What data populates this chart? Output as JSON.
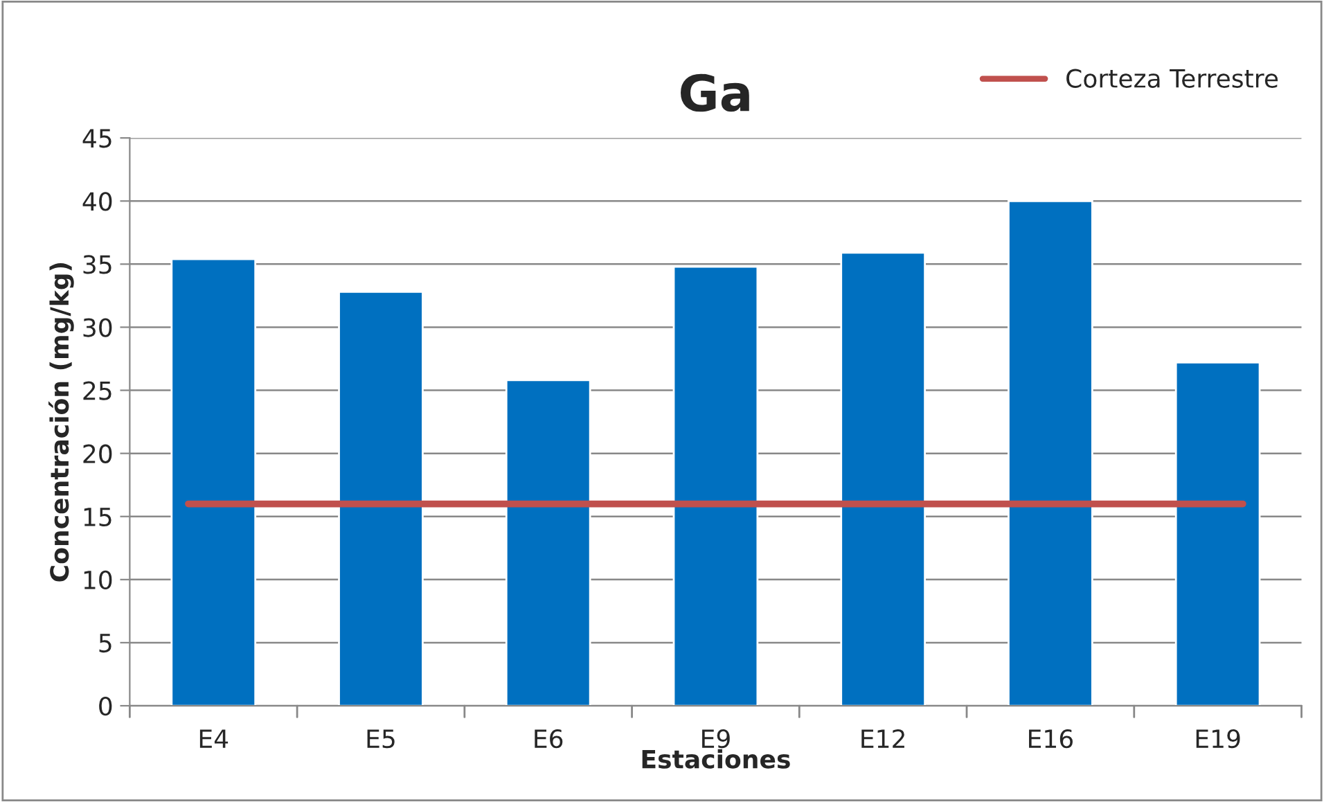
{
  "chart_data": {
    "type": "bar",
    "title": "Ga",
    "xlabel": "Estaciones",
    "ylabel": "Concentración (mg/kg)",
    "categories": [
      "E4",
      "E5",
      "E6",
      "E9",
      "E12",
      "E16",
      "E19"
    ],
    "series": [
      {
        "color": "#0070c0",
        "values": [
          35.4,
          32.8,
          25.8,
          34.8,
          35.9,
          40.0,
          27.2
        ]
      }
    ],
    "ylim": [
      0,
      45
    ],
    "yticks": [
      0,
      5,
      10,
      15,
      20,
      25,
      30,
      35,
      40,
      45
    ],
    "grid": "y",
    "legend": "top right",
    "ref_lines": [
      {
        "axis": "y",
        "value": 16,
        "label": "Corteza Terrestre",
        "color": "#c0504d",
        "line_style": "solid"
      }
    ]
  }
}
